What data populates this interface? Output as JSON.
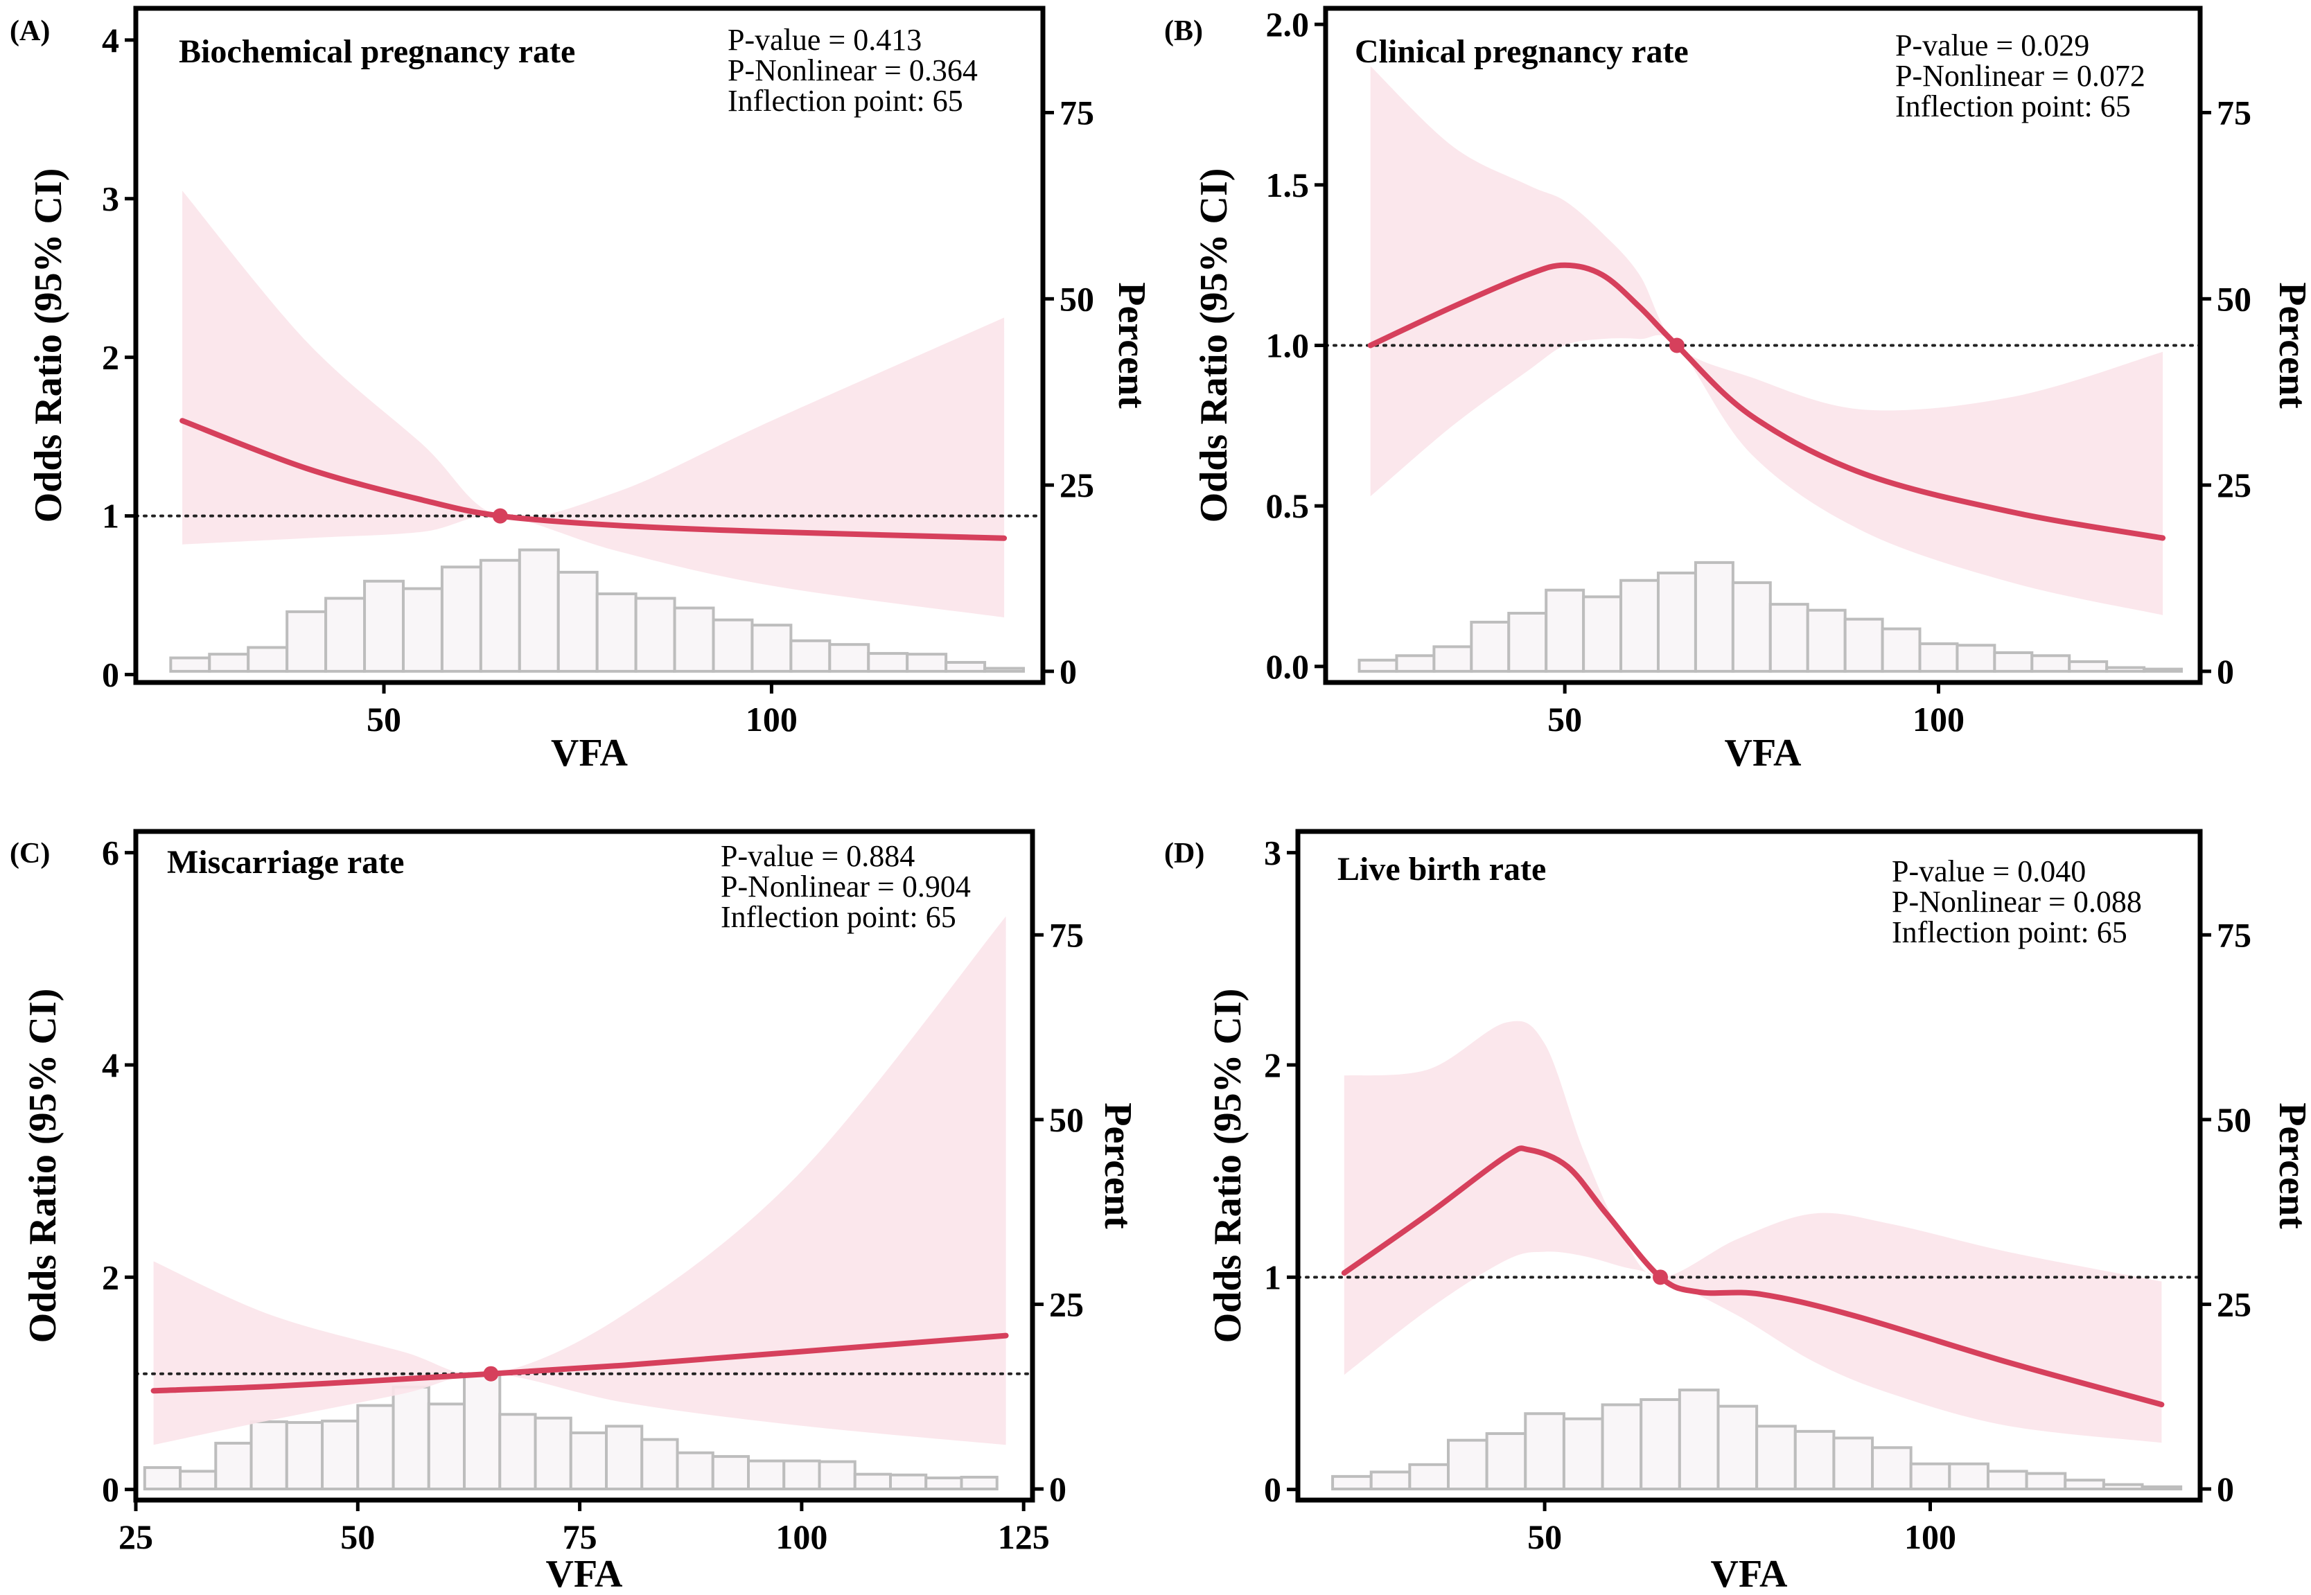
{
  "chart_data": [
    {
      "panel_label": "(A)",
      "type": "line",
      "title": "Biochemical pregnancy rate",
      "xlabel": "VFA",
      "ylabel": "Odds Ratio (95% CI)",
      "y2label": "Percent",
      "stats": [
        "P-value = 0.413",
        "P-Nonlinear = 0.364",
        "Inflection point: 65"
      ],
      "xlim": [
        18,
        135
      ],
      "ylim": [
        -0.05,
        4.2
      ],
      "y2lim": [
        -1.5,
        89
      ],
      "x_ticks": [
        50,
        100
      ],
      "y_ticks": [
        0,
        1,
        2,
        3,
        4
      ],
      "y2_ticks": [
        0,
        25,
        50,
        75
      ],
      "reference_y": 1,
      "inflection": [
        65,
        1
      ],
      "series": [
        {
          "name": "OR",
          "x": [
            24,
            40,
            55,
            65,
            80,
            100,
            130
          ],
          "y": [
            1.6,
            1.3,
            1.1,
            1.0,
            0.94,
            0.9,
            0.86
          ]
        },
        {
          "name": "upper",
          "x": [
            24,
            40,
            55,
            65,
            80,
            100,
            130
          ],
          "y": [
            3.05,
            2.1,
            1.45,
            1.0,
            1.15,
            1.6,
            2.25
          ]
        },
        {
          "name": "lower",
          "x": [
            24,
            40,
            55,
            65,
            80,
            100,
            130
          ],
          "y": [
            0.82,
            0.86,
            0.9,
            1.0,
            0.78,
            0.56,
            0.36
          ]
        }
      ],
      "histogram": {
        "x": [
          25,
          30,
          35,
          40,
          45,
          50,
          55,
          60,
          65,
          70,
          75,
          80,
          85,
          90,
          95,
          100,
          105,
          110,
          115,
          120,
          125,
          130
        ],
        "values": [
          1.8,
          2.3,
          3.2,
          8.0,
          9.8,
          12.1,
          11.1,
          14.0,
          14.9,
          16.3,
          13.3,
          10.4,
          9.8,
          8.5,
          6.9,
          6.2,
          4.1,
          3.6,
          2.4,
          2.3,
          1.2,
          0.4
        ]
      }
    },
    {
      "panel_label": "(B)",
      "type": "line",
      "title": "Clinical pregnancy rate",
      "xlabel": "VFA",
      "ylabel": "Odds Ratio (95% CI)",
      "y2label": "Percent",
      "stats": [
        "P-value = 0.029",
        "P-Nonlinear = 0.072",
        "Inflection point: 65"
      ],
      "xlim": [
        18,
        135
      ],
      "ylim": [
        -0.05,
        2.05
      ],
      "y2lim": [
        -1.5,
        89
      ],
      "x_ticks": [
        50,
        100
      ],
      "y_ticks": [
        0.0,
        0.5,
        1.0,
        1.5,
        2.0
      ],
      "y2_ticks": [
        0,
        25,
        50,
        75
      ],
      "reference_y": 1,
      "inflection": [
        65,
        1
      ],
      "series": [
        {
          "name": "OR",
          "x": [
            24,
            35,
            45,
            50,
            55,
            60,
            65,
            75,
            90,
            110,
            130
          ],
          "y": [
            1.0,
            1.12,
            1.22,
            1.25,
            1.22,
            1.12,
            1.0,
            0.78,
            0.6,
            0.48,
            0.4
          ]
        },
        {
          "name": "upper",
          "x": [
            24,
            35,
            45,
            50,
            55,
            60,
            65,
            75,
            90,
            110,
            130
          ],
          "y": [
            1.87,
            1.62,
            1.5,
            1.45,
            1.35,
            1.22,
            1.0,
            0.9,
            0.8,
            0.84,
            0.98
          ]
        },
        {
          "name": "lower",
          "x": [
            24,
            35,
            45,
            50,
            55,
            60,
            65,
            75,
            90,
            110,
            130
          ],
          "y": [
            0.53,
            0.75,
            0.92,
            1.0,
            1.02,
            1.02,
            1.0,
            0.66,
            0.42,
            0.26,
            0.16
          ]
        }
      ],
      "histogram": {
        "x": [
          25,
          30,
          35,
          40,
          45,
          50,
          55,
          60,
          65,
          70,
          75,
          80,
          85,
          90,
          95,
          100,
          105,
          110,
          115,
          120,
          125,
          130
        ],
        "values": [
          1.5,
          2.1,
          3.3,
          6.6,
          7.8,
          10.9,
          10.0,
          12.2,
          13.2,
          14.6,
          11.9,
          9.0,
          8.2,
          7.0,
          5.7,
          3.7,
          3.5,
          2.5,
          2.1,
          1.3,
          0.5,
          0.3
        ]
      }
    },
    {
      "panel_label": "(C)",
      "type": "line",
      "title": "Miscarriage rate",
      "xlabel": "VFA",
      "ylabel": "Odds Ratio (95% CI)",
      "y2label": "Percent",
      "stats": [
        "P-value = 0.884",
        "P-Nonlinear = 0.904",
        "Inflection point: 65"
      ],
      "xlim": [
        25,
        126
      ],
      "ylim": [
        -0.1,
        6.2
      ],
      "y2lim": [
        -1.5,
        89
      ],
      "x_ticks": [
        25,
        50,
        75,
        100,
        125
      ],
      "y_ticks": [
        0,
        2,
        4,
        6
      ],
      "y2_ticks": [
        0,
        25,
        50,
        75
      ],
      "reference_y": 1.09,
      "inflection": [
        65,
        1.09
      ],
      "series": [
        {
          "name": "OR",
          "x": [
            27,
            40,
            55,
            65,
            80,
            100,
            123
          ],
          "y": [
            0.93,
            0.97,
            1.04,
            1.09,
            1.17,
            1.3,
            1.45
          ]
        },
        {
          "name": "upper",
          "x": [
            27,
            40,
            55,
            65,
            80,
            100,
            123
          ],
          "y": [
            2.15,
            1.65,
            1.3,
            1.09,
            1.65,
            3.0,
            5.4
          ]
        },
        {
          "name": "lower",
          "x": [
            27,
            40,
            55,
            65,
            80,
            100,
            123
          ],
          "y": [
            0.42,
            0.65,
            0.9,
            1.09,
            0.82,
            0.6,
            0.42
          ]
        }
      ],
      "histogram": {
        "x": [
          28,
          32,
          36,
          40,
          44,
          48,
          52,
          56,
          60,
          64,
          68,
          72,
          76,
          80,
          84,
          88,
          92,
          96,
          100,
          104,
          108,
          112,
          116,
          120
        ],
        "values": [
          2.9,
          2.4,
          6.2,
          9.1,
          9.0,
          9.2,
          11.3,
          13.8,
          11.5,
          15.6,
          10.1,
          9.6,
          7.6,
          8.5,
          6.7,
          4.9,
          4.4,
          3.8,
          3.8,
          3.7,
          2.0,
          1.9,
          1.5,
          1.6
        ]
      }
    },
    {
      "panel_label": "(D)",
      "type": "line",
      "title": "Live birth rate",
      "xlabel": "VFA",
      "ylabel": "Odds Ratio (95% CI)",
      "y2label": "Percent",
      "stats": [
        "P-value = 0.040",
        "P-Nonlinear = 0.088",
        "Inflection point: 65"
      ],
      "xlim": [
        18,
        135
      ],
      "ylim": [
        -0.05,
        3.1
      ],
      "y2lim": [
        -1.5,
        89
      ],
      "x_ticks": [
        50,
        100
      ],
      "y_ticks": [
        0,
        1,
        2,
        3
      ],
      "y2_ticks": [
        0,
        25,
        50,
        75
      ],
      "reference_y": 1,
      "inflection": [
        65,
        1
      ],
      "series": [
        {
          "name": "OR",
          "x": [
            24,
            35,
            45,
            48,
            53,
            58,
            65,
            70,
            78,
            90,
            110,
            130
          ],
          "y": [
            1.02,
            1.3,
            1.57,
            1.6,
            1.52,
            1.3,
            1.0,
            0.93,
            0.92,
            0.82,
            0.6,
            0.4
          ]
        },
        {
          "name": "upper",
          "x": [
            24,
            35,
            45,
            50,
            55,
            60,
            65,
            75,
            85,
            95,
            110,
            130
          ],
          "y": [
            1.95,
            1.98,
            2.2,
            2.1,
            1.6,
            1.2,
            1.0,
            1.18,
            1.3,
            1.25,
            1.12,
            0.98
          ]
        },
        {
          "name": "lower",
          "x": [
            24,
            35,
            45,
            50,
            55,
            60,
            65,
            75,
            85,
            95,
            110,
            130
          ],
          "y": [
            0.54,
            0.85,
            1.08,
            1.12,
            1.1,
            1.05,
            1.0,
            0.82,
            0.6,
            0.45,
            0.3,
            0.22
          ]
        }
      ],
      "histogram": {
        "x": [
          25,
          30,
          35,
          40,
          45,
          50,
          55,
          60,
          65,
          70,
          75,
          80,
          85,
          90,
          95,
          100,
          105,
          110,
          115,
          120,
          125,
          130
        ],
        "values": [
          1.7,
          2.3,
          3.3,
          6.6,
          7.5,
          10.2,
          9.5,
          11.4,
          12.1,
          13.4,
          11.2,
          8.5,
          7.8,
          6.9,
          5.6,
          3.4,
          3.4,
          2.4,
          2.1,
          1.2,
          0.6,
          0.3
        ]
      }
    }
  ]
}
